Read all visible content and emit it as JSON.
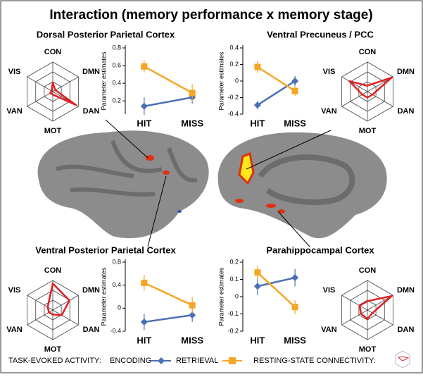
{
  "title": "Interaction (memory performance x memory stage)",
  "legend": {
    "task_label": "TASK-EVOKED ACTIVITY:",
    "rest_label": "RESTING-STATE CONNECTIVITY:"
  },
  "chart_data": [
    {
      "type": "radar",
      "axes": [
        "CON",
        "DMN",
        "DAN",
        "MOT",
        "VAN",
        "VIS"
      ],
      "values": [
        0.3,
        0.1,
        0.9,
        0.1,
        0.1,
        0.05
      ],
      "color": "#e02020",
      "rlim": [
        0,
        1
      ]
    },
    {
      "type": "line",
      "title": "Dorsal Posterior Parietal Cortex",
      "ylabel": "Parameter estimates",
      "categories": [
        "HIT",
        "MISS"
      ],
      "ylim": [
        0.05,
        0.8
      ],
      "yticks": [
        0.2,
        0.4,
        0.6,
        0.8
      ],
      "series": [
        {
          "name": "ENCODING",
          "color": "#4a6fb5",
          "values": [
            0.14,
            0.24
          ],
          "errors": [
            0.1,
            0.07
          ]
        },
        {
          "name": "RETRIEVAL",
          "color": "#f5a623",
          "values": [
            0.59,
            0.29
          ],
          "errors": [
            0.07,
            0.1
          ]
        }
      ]
    },
    {
      "type": "radar",
      "axes": [
        "CON",
        "DMN",
        "DAN",
        "MOT",
        "VAN",
        "VIS"
      ],
      "values": [
        0.2,
        0.95,
        0.2,
        0.2,
        0.2,
        0.7
      ],
      "color": "#e02020",
      "rlim": [
        0,
        1
      ]
    },
    {
      "type": "line",
      "title": "Ventral Precuneus / PCC",
      "ylabel": "Parameter estimates",
      "categories": [
        "HIT",
        "MISS"
      ],
      "ylim": [
        -0.4,
        0.4
      ],
      "yticks": [
        -0.4,
        -0.2,
        0,
        0.2,
        0.4
      ],
      "series": [
        {
          "name": "ENCODING",
          "color": "#4a6fb5",
          "values": [
            -0.29,
            0.0
          ],
          "errors": [
            0.05,
            0.06
          ]
        },
        {
          "name": "RETRIEVAL",
          "color": "#f5a623",
          "values": [
            0.17,
            -0.12
          ],
          "errors": [
            0.07,
            0.06
          ]
        }
      ]
    },
    {
      "type": "radar",
      "axes": [
        "CON",
        "DMN",
        "DAN",
        "MOT",
        "VAN",
        "VIS"
      ],
      "values": [
        0.9,
        0.65,
        0.35,
        0.15,
        0.15,
        0.2
      ],
      "color": "#e02020",
      "rlim": [
        0,
        1
      ]
    },
    {
      "type": "line",
      "title": "Ventral Posterior Parietal Cortex",
      "ylabel": "Parameter estimates",
      "categories": [
        "HIT",
        "MISS"
      ],
      "ylim": [
        -0.4,
        0.8
      ],
      "yticks": [
        -0.4,
        0,
        0.4,
        0.8
      ],
      "series": [
        {
          "name": "ENCODING",
          "color": "#4a6fb5",
          "values": [
            -0.24,
            -0.12
          ],
          "errors": [
            0.14,
            0.12
          ]
        },
        {
          "name": "RETRIEVAL",
          "color": "#f5a623",
          "values": [
            0.44,
            0.05
          ],
          "errors": [
            0.14,
            0.14
          ]
        }
      ]
    },
    {
      "type": "radar",
      "axes": [
        "CON",
        "DMN",
        "DAN",
        "MOT",
        "VAN",
        "VIS"
      ],
      "values": [
        0.3,
        0.95,
        0.2,
        0.3,
        0.25,
        0.3
      ],
      "color": "#e02020",
      "rlim": [
        0,
        1
      ]
    },
    {
      "type": "line",
      "title": "Parahippocampal Cortex",
      "ylabel": "Parameter estimates",
      "categories": [
        "HIT",
        "MISS"
      ],
      "ylim": [
        -0.2,
        0.2
      ],
      "yticks": [
        -0.2,
        -0.1,
        0,
        0.1,
        0.2
      ],
      "series": [
        {
          "name": "ENCODING",
          "color": "#4a6fb5",
          "values": [
            0.06,
            0.11
          ],
          "errors": [
            0.05,
            0.05
          ]
        },
        {
          "name": "RETRIEVAL",
          "color": "#f5a623",
          "values": [
            0.14,
            -0.06
          ],
          "errors": [
            0.04,
            0.04
          ]
        }
      ]
    }
  ]
}
